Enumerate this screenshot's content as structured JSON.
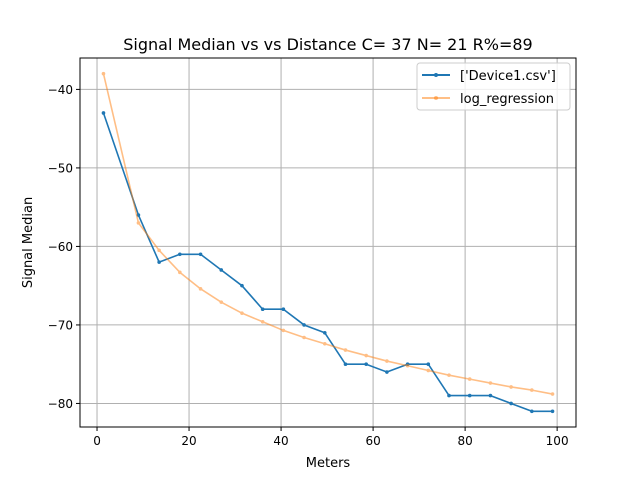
{
  "chart_data": {
    "type": "line",
    "title": "Signal Median vs vs Distance  C= 37 N= 21 R%=89",
    "xlabel": "Meters",
    "ylabel": "Signal Median",
    "xlim": [
      -3.7,
      104.1
    ],
    "ylim": [
      -83.0,
      -36.0
    ],
    "xticks": [
      0,
      20,
      40,
      60,
      80,
      100
    ],
    "yticks": [
      -40,
      -50,
      -60,
      -70,
      -80
    ],
    "xtick_labels": [
      "0",
      "20",
      "40",
      "60",
      "80",
      "100"
    ],
    "ytick_labels": [
      "−40",
      "−50",
      "−60",
      "−70",
      "−80"
    ],
    "grid": true,
    "legend_position": "top-right",
    "series": [
      {
        "name": "['Device1.csv']",
        "color": "#1f77b4",
        "opacity": 1,
        "x": [
          1.4,
          9.0,
          13.5,
          18.0,
          22.5,
          27.0,
          31.5,
          36.0,
          40.5,
          45.0,
          49.5,
          54.0,
          58.5,
          63.0,
          67.5,
          72.0,
          76.5,
          81.0,
          85.5,
          90.0,
          94.5,
          99.0
        ],
        "y": [
          -43,
          -56,
          -62,
          -61,
          -61,
          -63,
          -65,
          -68,
          -68,
          -70,
          -71,
          -75,
          -75,
          -76,
          -75,
          -75,
          -79,
          -79,
          -79,
          -80,
          -81,
          -81
        ]
      },
      {
        "name": "log_regression",
        "color": "#ff7f0e",
        "opacity": 0.5,
        "x": [
          1.4,
          9.0,
          13.5,
          18.0,
          22.5,
          27.0,
          31.5,
          36.0,
          40.5,
          45.0,
          49.5,
          54.0,
          58.5,
          63.0,
          67.5,
          72.0,
          76.5,
          81.0,
          85.5,
          90.0,
          94.5,
          99.0
        ],
        "y": [
          -38.0,
          -57.0,
          -60.5,
          -63.3,
          -65.4,
          -67.1,
          -68.5,
          -69.6,
          -70.7,
          -71.6,
          -72.4,
          -73.2,
          -73.9,
          -74.6,
          -75.2,
          -75.8,
          -76.4,
          -76.9,
          -77.4,
          -77.9,
          -78.3,
          -78.8
        ]
      }
    ]
  }
}
